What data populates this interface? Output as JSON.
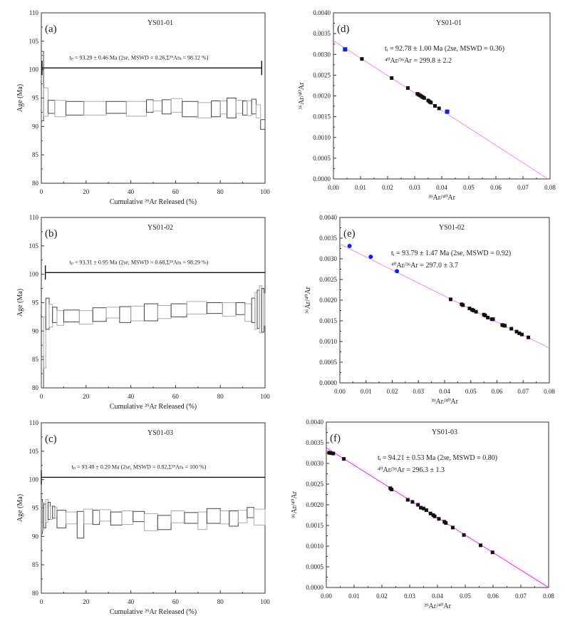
{
  "chart_data": [
    {
      "id": "a",
      "type": "step-spectrum",
      "panel_label": "(a)",
      "title": "YS01-01",
      "xlabel": "Cumulative ³⁹Ar Released (%)",
      "ylabel": "Age (Ma)",
      "xlim": [
        0,
        100
      ],
      "ylim": [
        80,
        110
      ],
      "xticks": [
        "0",
        "20",
        "40",
        "60",
        "80",
        "100"
      ],
      "yticks": [
        "80",
        "85",
        "90",
        "95",
        "100",
        "105",
        "110"
      ],
      "annotation": "tₚ = 93.29 ± 0.46 Ma (2se, MSWD = 0.26,Σ³⁹Arₖ = 98.12 %)",
      "plateau": {
        "age_line": 100.3,
        "from": 0.3,
        "to": 98.5
      },
      "steps": [
        [
          0,
          1,
          91,
          103.2
        ],
        [
          1,
          3,
          91.8,
          96.8
        ],
        [
          3,
          6,
          92.3,
          94.6
        ],
        [
          6,
          11,
          91.7,
          94.6
        ],
        [
          11,
          19,
          92,
          94.4
        ],
        [
          19,
          29,
          92,
          94.4
        ],
        [
          29,
          38,
          92.3,
          94.4
        ],
        [
          38,
          47,
          91.8,
          94.4
        ],
        [
          47,
          50,
          92.5,
          94.7
        ],
        [
          50,
          54,
          92.7,
          94.5
        ],
        [
          54,
          58,
          92.2,
          94.7
        ],
        [
          58,
          63,
          92.5,
          94.9
        ],
        [
          63,
          70,
          91.7,
          94.4
        ],
        [
          70,
          76,
          91.5,
          94.2
        ],
        [
          76,
          80,
          91.7,
          94.5
        ],
        [
          80,
          83,
          92.2,
          94.5
        ],
        [
          83,
          87,
          91.5,
          95
        ],
        [
          87,
          90,
          92.3,
          94.6
        ],
        [
          90,
          92,
          92,
          94.5
        ],
        [
          92,
          94,
          91.9,
          94.5
        ],
        [
          94,
          96,
          92.2,
          94.8
        ],
        [
          96,
          98,
          91.5,
          93.8
        ],
        [
          98,
          100,
          89.5,
          91.2
        ]
      ]
    },
    {
      "id": "b",
      "type": "step-spectrum",
      "panel_label": "(b)",
      "title": "YS01-02",
      "xlabel": "Cumulative ³⁹Ar Released (%)",
      "ylabel": "Age (Ma)",
      "xlim": [
        0,
        100
      ],
      "ylim": [
        80,
        110
      ],
      "xticks": [
        "0",
        "20",
        "40",
        "60",
        "80",
        "100"
      ],
      "yticks": [
        "80",
        "85",
        "90",
        "95",
        "100",
        "105",
        "110"
      ],
      "annotation": "tₚ = 93.31 ± 0.95 Ma (2se, MSWD = 0.68,Σ³⁹Arₖ = 98.29 %)",
      "plateau": {
        "age_line": 100.3,
        "from": 1.8,
        "to": 100
      },
      "steps": [
        [
          0,
          1,
          80,
          85.5
        ],
        [
          1,
          2,
          83.5,
          92.5
        ],
        [
          2,
          3.5,
          90.3,
          95.8
        ],
        [
          3.5,
          5,
          90.7,
          94.7
        ],
        [
          5,
          7,
          91.5,
          94.2
        ],
        [
          7,
          10,
          91,
          93.6
        ],
        [
          10,
          17,
          91.6,
          93.7
        ],
        [
          17,
          23,
          91.2,
          93.6
        ],
        [
          23,
          29,
          91.7,
          94.1
        ],
        [
          29,
          35,
          92.3,
          94.2
        ],
        [
          35,
          40,
          91.5,
          94.3
        ],
        [
          40,
          46,
          91.8,
          94.4
        ],
        [
          46,
          52,
          91.8,
          94.8
        ],
        [
          52,
          58,
          92.2,
          94.5
        ],
        [
          58,
          65,
          92.5,
          94.8
        ],
        [
          65,
          74,
          93,
          95.2
        ],
        [
          74,
          81,
          93.1,
          95
        ],
        [
          81,
          87,
          92.6,
          95
        ],
        [
          87,
          91,
          92.9,
          95
        ],
        [
          91,
          94,
          91.7,
          94.8
        ],
        [
          94,
          95.5,
          91.5,
          95.8
        ],
        [
          95.5,
          96.5,
          90.3,
          96.8
        ],
        [
          96.5,
          97.5,
          90.5,
          97.2
        ],
        [
          97.5,
          98.5,
          89.7,
          98
        ],
        [
          98.5,
          99.5,
          89.8,
          97.5
        ],
        [
          99.5,
          100,
          91,
          96.6
        ]
      ]
    },
    {
      "id": "c",
      "type": "step-spectrum",
      "panel_label": "(c)",
      "title": "YS01-03",
      "xlabel": "Cumulative ³⁹Ar Released (%)",
      "ylabel": "Age (Ma)",
      "xlim": [
        0,
        100
      ],
      "ylim": [
        80,
        110
      ],
      "xticks": [
        "0",
        "20",
        "40",
        "60",
        "80",
        "100"
      ],
      "yticks": [
        "80",
        "85",
        "90",
        "95",
        "100",
        "105",
        "110"
      ],
      "annotation": "tₚ = 93.49 ± 0.29 Ma (2se, MSWD = 0.82,Σ³⁹Arₖ = 100 %)",
      "plateau": {
        "age_line": 100.4,
        "from": 0,
        "to": 100
      },
      "steps": [
        [
          0,
          0.5,
          90.5,
          96.5
        ],
        [
          0.5,
          1,
          91,
          96
        ],
        [
          1,
          2,
          91.5,
          95.7
        ],
        [
          2,
          3,
          92.5,
          96.5
        ],
        [
          3,
          4,
          93,
          96
        ],
        [
          4,
          5,
          93,
          95.3
        ],
        [
          5,
          6,
          93.2,
          95.3
        ],
        [
          6,
          7,
          93.2,
          95.1
        ],
        [
          7,
          11,
          91.5,
          94.6
        ],
        [
          11,
          16,
          92.2,
          94.3
        ],
        [
          16,
          19,
          89.7,
          94.4
        ],
        [
          19,
          23,
          92.2,
          94.8
        ],
        [
          23,
          26,
          92.1,
          94.6
        ],
        [
          26,
          31,
          92.7,
          94.7
        ],
        [
          31,
          36,
          92,
          94.3
        ],
        [
          36,
          41,
          92.1,
          94.5
        ],
        [
          41,
          46,
          92.6,
          94.4
        ],
        [
          46,
          52,
          91,
          94
        ],
        [
          52,
          58,
          91.2,
          93.7
        ],
        [
          58,
          64,
          92.4,
          94.5
        ],
        [
          64,
          70,
          92.3,
          94.2
        ],
        [
          70,
          74,
          91.2,
          94.3
        ],
        [
          74,
          80,
          92.3,
          94.9
        ],
        [
          80,
          84,
          92.2,
          94.5
        ],
        [
          84,
          88,
          91.8,
          94.5
        ],
        [
          88,
          92,
          92.4,
          94.6
        ],
        [
          92,
          95,
          93.3,
          95.1
        ],
        [
          95,
          100,
          92,
          94.8
        ]
      ]
    },
    {
      "id": "d",
      "type": "scatter",
      "panel_label": "(d)",
      "title": "YS01-01",
      "xlabel": "³⁹Ar/⁴⁰Ar",
      "ylabel": "³⁶Ar/⁴⁰Ar",
      "xlim": [
        0,
        0.08
      ],
      "ylim": [
        0,
        0.004
      ],
      "xticks": [
        "0.00",
        "0.01",
        "0.02",
        "0.03",
        "0.04",
        "0.05",
        "0.06",
        "0.07",
        "0.08"
      ],
      "yticks": [
        "0.0000",
        "0.0005",
        "0.0010",
        "0.0015",
        "0.0020",
        "0.0025",
        "0.0030",
        "0.0035",
        "0.0040"
      ],
      "annotation": [
        "tᵢ = 92.78 ± 1.00 Ma (2se, MSWD = 0.36)",
        "⁴⁰Ar/³⁶Ar = 299.8 ± 2.2"
      ],
      "fit_line": {
        "x": [
          0,
          0.0793
        ],
        "y": [
          0.00333,
          0
        ],
        "color": "#f08cf0"
      },
      "excluded_marker": "square",
      "excluded_points": [
        [
          0.0043,
          0.00312
        ],
        [
          0.042,
          0.00162
        ]
      ],
      "points": [
        [
          0.0105,
          0.00289
        ],
        [
          0.0215,
          0.00243
        ],
        [
          0.0275,
          0.00219
        ],
        [
          0.031,
          0.00205
        ],
        [
          0.0315,
          0.00203
        ],
        [
          0.032,
          0.00201
        ],
        [
          0.0325,
          0.00199
        ],
        [
          0.033,
          0.00197
        ],
        [
          0.0335,
          0.00195
        ],
        [
          0.035,
          0.00189
        ],
        [
          0.0355,
          0.00186
        ],
        [
          0.036,
          0.00184
        ],
        [
          0.0375,
          0.00176
        ],
        [
          0.039,
          0.0017
        ]
      ]
    },
    {
      "id": "e",
      "type": "scatter",
      "panel_label": "(e)",
      "title": "YS01-02",
      "xlabel": "³⁹Ar/⁴⁰Ar",
      "ylabel": "³⁶Ar/⁴⁰Ar",
      "xlim": [
        0,
        0.08
      ],
      "ylim": [
        0,
        0.004
      ],
      "xticks": [
        "0.00",
        "0.01",
        "0.02",
        "0.03",
        "0.04",
        "0.05",
        "0.06",
        "0.07",
        "0.08"
      ],
      "yticks": [
        "0.0000",
        "0.0005",
        "0.0010",
        "0.0015",
        "0.0020",
        "0.0025",
        "0.0030",
        "0.0035",
        "0.0040"
      ],
      "annotation": [
        "tᵢ = 93.79 ± 1.47 Ma (2se, MSWD = 0.92)",
        "⁴⁰Ar/³⁶Ar = 297.0 ± 3.7"
      ],
      "fit_line": {
        "x": [
          0,
          0.08
        ],
        "y": [
          0.00336,
          0.00084
        ],
        "color": "#f08cf0"
      },
      "excluded_marker": "circle",
      "excluded_points": [
        [
          0.0037,
          0.00331
        ],
        [
          0.0118,
          0.00305
        ],
        [
          0.0218,
          0.0027
        ]
      ],
      "points": [
        [
          0.0423,
          0.00202
        ],
        [
          0.0465,
          0.0019
        ],
        [
          0.047,
          0.00188
        ],
        [
          0.0495,
          0.0018
        ],
        [
          0.0505,
          0.00177
        ],
        [
          0.051,
          0.00175
        ],
        [
          0.052,
          0.00172
        ],
        [
          0.055,
          0.00165
        ],
        [
          0.0555,
          0.00163
        ],
        [
          0.0565,
          0.00158
        ],
        [
          0.058,
          0.00154
        ],
        [
          0.0585,
          0.00154
        ],
        [
          0.062,
          0.0014
        ],
        [
          0.0625,
          0.00139
        ],
        [
          0.063,
          0.00138
        ],
        [
          0.0655,
          0.00131
        ],
        [
          0.0675,
          0.00124
        ],
        [
          0.0685,
          0.0012
        ],
        [
          0.0695,
          0.00117
        ],
        [
          0.072,
          0.0011
        ]
      ]
    },
    {
      "id": "f",
      "type": "scatter",
      "panel_label": "(f)",
      "title": "YS01-03",
      "xlabel": "³⁹Ar/⁴⁰Ar",
      "ylabel": "³⁶Ar/⁴⁰Ar",
      "xlim": [
        0,
        0.08
      ],
      "ylim": [
        0,
        0.004
      ],
      "xticks": [
        "0.00",
        "0.01",
        "0.02",
        "0.03",
        "0.04",
        "0.05",
        "0.06",
        "0.07",
        "0.08"
      ],
      "yticks": [
        "0.0000",
        "0.0005",
        "0.0010",
        "0.0015",
        "0.0020",
        "0.0025",
        "0.0030",
        "0.0035",
        "0.0040"
      ],
      "annotation": [
        "tᵢ = 94.21 ± 0.53 Ma (2se, MSWD = 0.80)",
        "⁴⁰Ar/³⁶Ar = 296.3 ± 1.3"
      ],
      "fit_line": {
        "x": [
          0,
          0.08
        ],
        "y": [
          0.00338,
          0
        ],
        "color": "#ff22ff"
      },
      "excluded_marker": "square",
      "excluded_points": [],
      "points": [
        [
          0.001,
          0.00326
        ],
        [
          0.0015,
          0.00325
        ],
        [
          0.0025,
          0.00324
        ],
        [
          0.0063,
          0.00311
        ],
        [
          0.023,
          0.0024
        ],
        [
          0.0235,
          0.00237
        ],
        [
          0.0293,
          0.00212
        ],
        [
          0.031,
          0.00207
        ],
        [
          0.033,
          0.002
        ],
        [
          0.034,
          0.00193
        ],
        [
          0.035,
          0.00191
        ],
        [
          0.036,
          0.00187
        ],
        [
          0.0375,
          0.00179
        ],
        [
          0.0385,
          0.00175
        ],
        [
          0.039,
          0.00172
        ],
        [
          0.0405,
          0.00166
        ],
        [
          0.0425,
          0.00159
        ],
        [
          0.043,
          0.00156
        ],
        [
          0.0455,
          0.00145
        ],
        [
          0.0495,
          0.00127
        ],
        [
          0.0555,
          0.00102
        ],
        [
          0.0598,
          0.00085
        ]
      ]
    }
  ],
  "colors": {
    "step_dark": "#444444",
    "step_light": "#aaaaaa",
    "excluded": "#0a22ee",
    "point": "#111111"
  }
}
